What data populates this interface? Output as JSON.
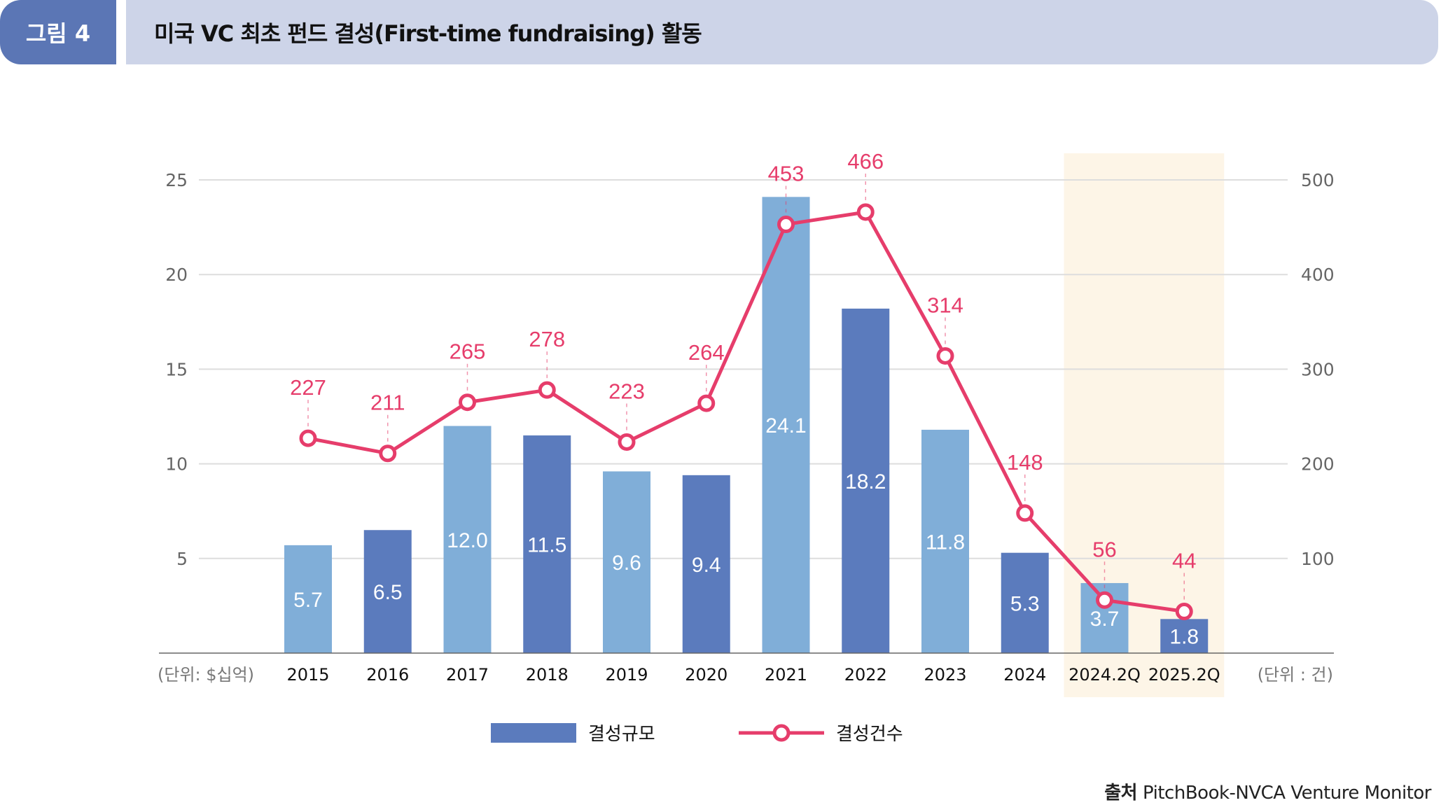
{
  "header": {
    "figure_label": "그림 4",
    "title": "미국 VC 최초 펀드 결성(First-time fundraising) 활동"
  },
  "colors": {
    "badge": "#5B76B5",
    "title_bar": "#CDD4E8",
    "bar_light": "#80AED8",
    "bar_dark": "#5B7BBD",
    "line": "#E63D6B",
    "highlight": "#FDF5E7",
    "grid": "#DDDDDD"
  },
  "chart_data": {
    "type": "bar+line",
    "title": "미국 VC 최초 펀드 결성(First-time fundraising) 활동",
    "categories": [
      "2015",
      "2016",
      "2017",
      "2018",
      "2019",
      "2020",
      "2021",
      "2022",
      "2023",
      "2024",
      "2024.2Q",
      "2025.2Q"
    ],
    "series": [
      {
        "name": "결성규모",
        "type": "bar",
        "axis": "left",
        "values": [
          5.7,
          6.5,
          12.0,
          11.5,
          9.6,
          9.4,
          24.1,
          18.2,
          11.8,
          5.3,
          3.7,
          1.8
        ],
        "labels": [
          "5.7",
          "6.5",
          "12.0",
          "11.5",
          "9.6",
          "9.4",
          "24.1",
          "18.2",
          "11.8",
          "5.3",
          "3.7",
          "1.8"
        ]
      },
      {
        "name": "결성건수",
        "type": "line",
        "axis": "right",
        "values": [
          227,
          211,
          265,
          278,
          223,
          264,
          453,
          466,
          314,
          148,
          56,
          44
        ],
        "labels": [
          "227",
          "211",
          "265",
          "278",
          "223",
          "264",
          "453",
          "466",
          "314",
          "148",
          "56",
          "44"
        ]
      }
    ],
    "left_axis": {
      "ylim": [
        0,
        25
      ],
      "ticks": [
        "5",
        "10",
        "15",
        "20",
        "25"
      ],
      "tick_values": [
        5,
        10,
        15,
        20,
        25
      ],
      "unit_label": "(단위: $십억)"
    },
    "right_axis": {
      "ylim": [
        0,
        500
      ],
      "ticks": [
        "100",
        "200",
        "300",
        "400",
        "500"
      ],
      "tick_values": [
        100,
        200,
        300,
        400,
        500
      ],
      "unit_label": "(단위 : 건)"
    },
    "highlighted_categories": [
      "2024.2Q",
      "2025.2Q"
    ],
    "grid": true,
    "legend": {
      "position": "bottom-center",
      "items": [
        "결성규모",
        "결성건수"
      ]
    }
  },
  "source": {
    "label": "출처",
    "text": "PitchBook-NVCA Venture Monitor"
  }
}
